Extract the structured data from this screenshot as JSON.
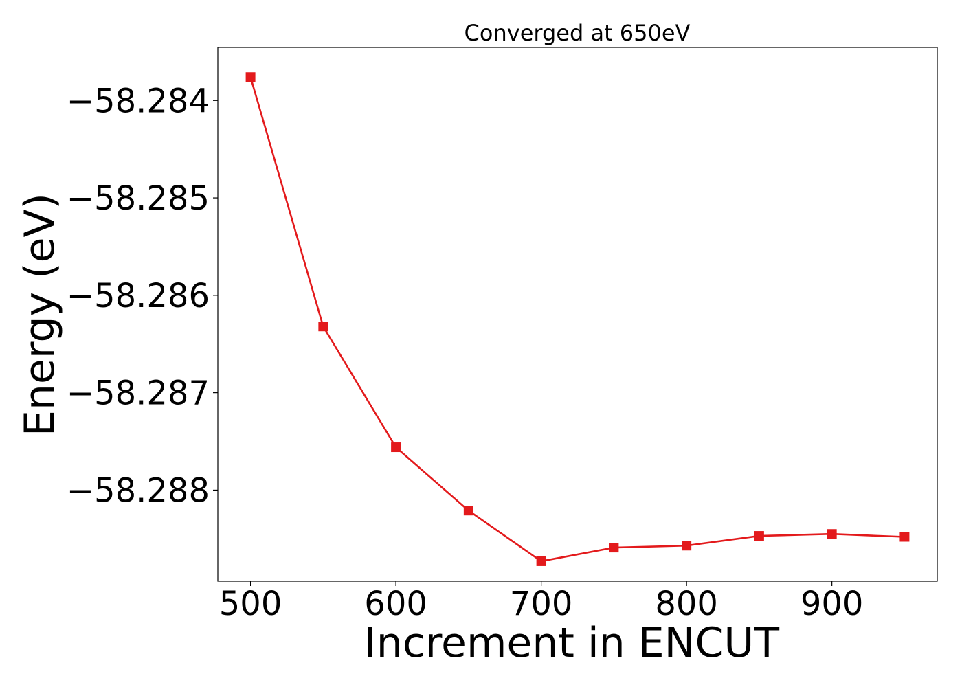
{
  "chart_data": {
    "type": "line",
    "title": "Converged at 650eV",
    "xlabel": "Increment in ENCUT",
    "ylabel": "Energy (eV)",
    "x": [
      500,
      550,
      600,
      650,
      700,
      750,
      800,
      850,
      900,
      950
    ],
    "series": [
      {
        "values": [
          -58.28376,
          -58.28632,
          -58.28756,
          -58.28821,
          -58.28873,
          -58.28859,
          -58.28857,
          -58.28847,
          -58.28845,
          -58.28848
        ],
        "color": "#e31a1c",
        "marker": "square"
      }
    ],
    "xlim": [
      477.5,
      972.5
    ],
    "ylim": [
      -58.288935,
      -58.283455
    ],
    "x_ticks": [
      500,
      600,
      700,
      800,
      900
    ],
    "y_ticks": [
      -58.284,
      -58.285,
      -58.286,
      -58.287,
      -58.288
    ],
    "x_tick_labels": [
      "500",
      "600",
      "700",
      "800",
      "900"
    ],
    "y_tick_labels": [
      "−58.284",
      "−58.285",
      "−58.286",
      "−58.287",
      "−58.288"
    ],
    "grid": false,
    "legend": "none"
  }
}
